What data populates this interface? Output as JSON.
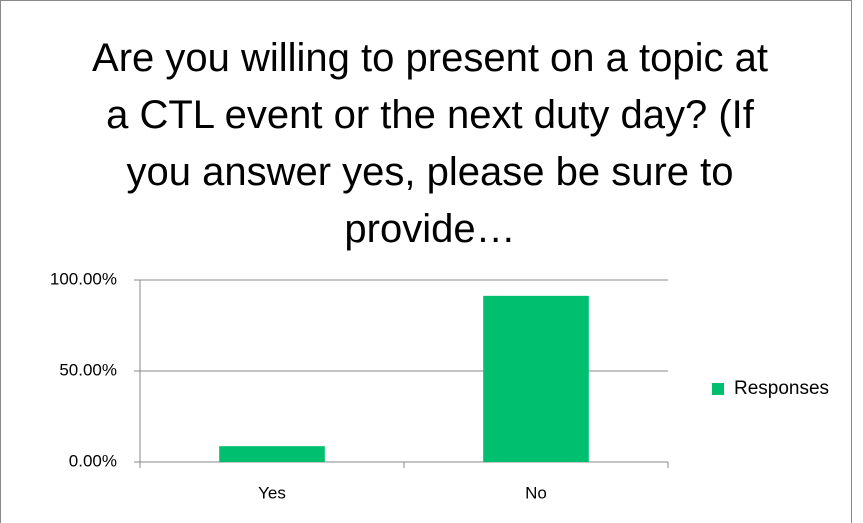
{
  "chart_data": {
    "type": "bar",
    "title": "Are you willing to present on a topic at a CTL event or the next duty day? (If you answer yes, please be sure to provide…",
    "categories": [
      "Yes",
      "No"
    ],
    "series": [
      {
        "name": "Responses",
        "color": "#00c070",
        "values": [
          8.7,
          91.3
        ]
      }
    ],
    "ylim": [
      0,
      100
    ],
    "yticks": [
      {
        "value": 0,
        "label": "0.00%"
      },
      {
        "value": 50,
        "label": "50.00%"
      },
      {
        "value": 100,
        "label": "100.00%"
      }
    ],
    "grid": true,
    "legend": "right"
  }
}
